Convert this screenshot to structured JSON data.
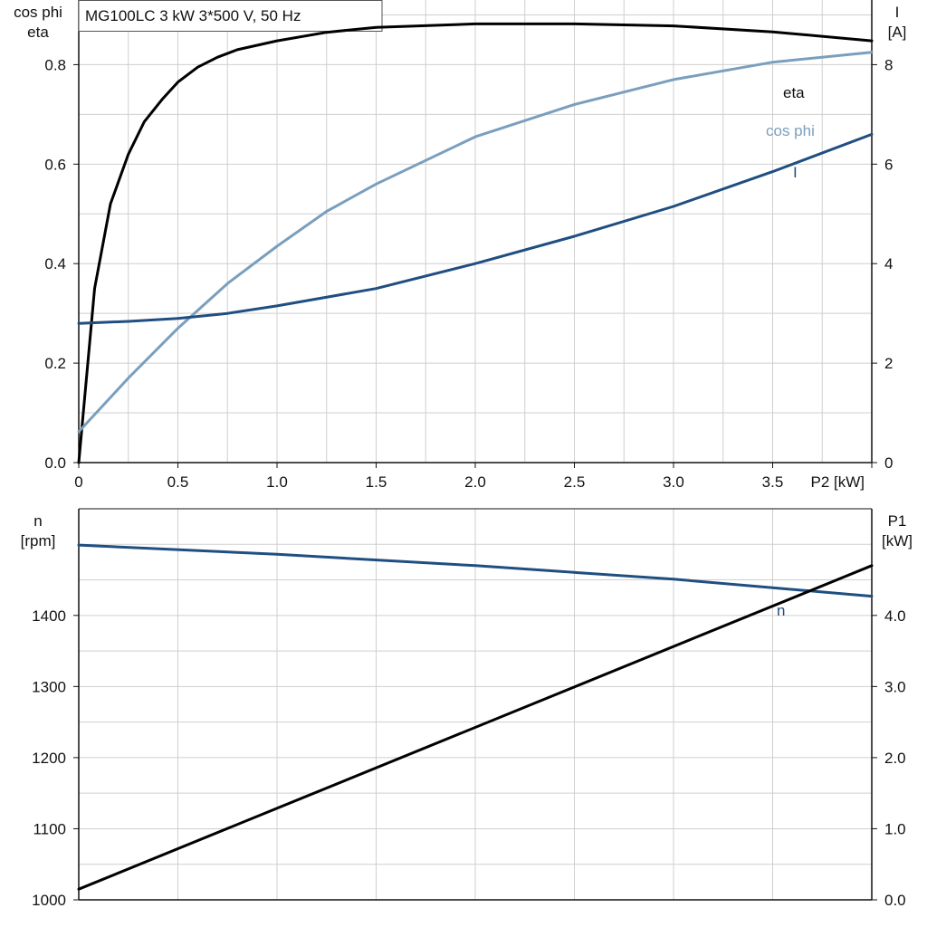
{
  "chart_data": [
    {
      "type": "line",
      "title": "MG100LC   3 kW   3*500 V, 50 Hz",
      "xlabel": "P2 [kW]",
      "xlim": [
        0,
        4.0
      ],
      "x_ticks": [
        0,
        0.5,
        1.0,
        1.5,
        2.0,
        2.5,
        3.0,
        3.5
      ],
      "x_tick_labels": [
        "0",
        "0.5",
        "1.0",
        "1.5",
        "2.0",
        "2.5",
        "3.0",
        "3.5"
      ],
      "ylabel_left_line1": "cos phi",
      "ylabel_left_line2": "eta",
      "ylim_left": [
        0,
        0.93
      ],
      "y_ticks_left": [
        0,
        0.2,
        0.4,
        0.6,
        0.8
      ],
      "y_tick_labels_left": [
        "0.0",
        "0.2",
        "0.4",
        "0.6",
        "0.8"
      ],
      "ylabel_right_line1": "I",
      "ylabel_right_line2": "[A]",
      "ylim_right": [
        0,
        9.3
      ],
      "y_ticks_right": [
        0,
        2,
        4,
        6,
        8
      ],
      "y_tick_labels_right": [
        "0",
        "2",
        "4",
        "6",
        "8"
      ],
      "grid": true,
      "series": [
        {
          "name": "eta",
          "axis": "left",
          "color": "#000000",
          "x": [
            0,
            0.08,
            0.16,
            0.25,
            0.33,
            0.42,
            0.5,
            0.6,
            0.7,
            0.8,
            1.0,
            1.25,
            1.5,
            2.0,
            2.5,
            3.0,
            3.5,
            4.0
          ],
          "y": [
            0.0,
            0.35,
            0.52,
            0.62,
            0.685,
            0.73,
            0.765,
            0.795,
            0.815,
            0.83,
            0.848,
            0.865,
            0.875,
            0.882,
            0.882,
            0.878,
            0.866,
            0.848
          ]
        },
        {
          "name": "cos phi",
          "axis": "left",
          "color": "#7a9fbe",
          "x": [
            0,
            0.25,
            0.5,
            0.75,
            1.0,
            1.25,
            1.5,
            2.0,
            2.5,
            3.0,
            3.5,
            4.0
          ],
          "y": [
            0.062,
            0.17,
            0.27,
            0.36,
            0.435,
            0.505,
            0.56,
            0.655,
            0.72,
            0.77,
            0.805,
            0.825
          ]
        },
        {
          "name": "I",
          "axis": "right",
          "color": "#1f4e80",
          "x": [
            0,
            0.25,
            0.5,
            0.75,
            1.0,
            1.5,
            2.0,
            2.5,
            3.0,
            3.5,
            4.0
          ],
          "y": [
            2.8,
            2.84,
            2.9,
            3.0,
            3.15,
            3.5,
            4.0,
            4.55,
            5.15,
            5.85,
            6.6
          ]
        }
      ]
    },
    {
      "type": "line",
      "xlim": [
        0,
        4.0
      ],
      "ylabel_left_line1": "n",
      "ylabel_left_line2": "[rpm]",
      "ylim_left": [
        1000,
        1550
      ],
      "y_ticks_left": [
        1000,
        1100,
        1200,
        1300,
        1400
      ],
      "y_tick_labels_left": [
        "1000",
        "1100",
        "1200",
        "1300",
        "1400"
      ],
      "ylabel_right_line1": "P1",
      "ylabel_right_line2": "[kW]",
      "ylim_right": [
        0,
        5.5
      ],
      "y_ticks_right": [
        0,
        1.0,
        2.0,
        3.0,
        4.0
      ],
      "y_tick_labels_right": [
        "0.0",
        "1.0",
        "2.0",
        "3.0",
        "4.0"
      ],
      "grid": true,
      "series": [
        {
          "name": "n",
          "axis": "left",
          "color": "#1f4e80",
          "x": [
            0,
            1.0,
            2.0,
            3.0,
            4.0
          ],
          "y": [
            1499,
            1486,
            1470,
            1451,
            1427
          ]
        },
        {
          "axis": "right",
          "color": "#000000",
          "x": [
            0,
            4.0
          ],
          "y": [
            0.15,
            4.7
          ]
        }
      ]
    }
  ]
}
